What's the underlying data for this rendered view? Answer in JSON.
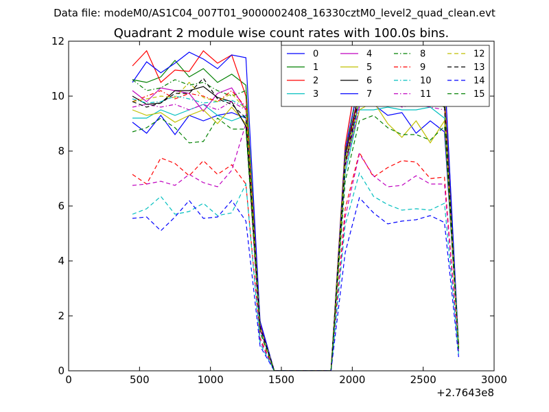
{
  "header": {
    "suptitle": "Data file: modeM0/AS1C04_007T01_9000002408_16330cztM0_level2_quad_clean.evt"
  },
  "chart_data": {
    "type": "line",
    "title": "Quadrant 2 module wise count rates with 100.0s bins.",
    "xlabel": "",
    "ylabel": "",
    "x_offset_label": "+2.7643e8",
    "xlim": [
      0,
      3000
    ],
    "ylim": [
      0,
      12
    ],
    "xticks": [
      0,
      500,
      1000,
      1500,
      2000,
      2500,
      3000
    ],
    "yticks": [
      0,
      2,
      4,
      6,
      8,
      10,
      12
    ],
    "grid": false,
    "legend": {
      "placement": "top-right",
      "columns": 4
    },
    "x": [
      450,
      550,
      650,
      750,
      850,
      950,
      1050,
      1150,
      1250,
      1350,
      1450,
      1550,
      1650,
      1750,
      1850,
      1950,
      2050,
      2150,
      2250,
      2350,
      2450,
      2550,
      2650,
      2750
    ],
    "series": [
      {
        "name": "0",
        "color": "#0000ff",
        "dash": "solid",
        "values": [
          9.05,
          8.65,
          9.3,
          8.6,
          9.3,
          9.1,
          9.3,
          9.4,
          9.2,
          1.7,
          0,
          0,
          0,
          0,
          0,
          7.5,
          9.8,
          9.7,
          9.3,
          9.4,
          8.65,
          9.1,
          8.7,
          0.9
        ]
      },
      {
        "name": "1",
        "color": "#008000",
        "dash": "solid",
        "values": [
          10.6,
          10.5,
          10.7,
          11.3,
          10.7,
          11.0,
          10.5,
          10.8,
          10.4,
          1.6,
          0,
          0,
          0,
          0,
          0,
          7.9,
          10.6,
          10.8,
          10.8,
          10.5,
          10.9,
          10.4,
          9.9,
          0.9
        ]
      },
      {
        "name": "2",
        "color": "#ff0000",
        "dash": "solid",
        "values": [
          11.1,
          11.65,
          10.5,
          10.95,
          10.9,
          11.65,
          11.2,
          11.5,
          10.0,
          1.7,
          0,
          0,
          0,
          0,
          0,
          8.2,
          11.3,
          11.0,
          10.4,
          10.5,
          10.6,
          10.1,
          10.2,
          0.9
        ]
      },
      {
        "name": "3",
        "color": "#00bfbf",
        "dash": "solid",
        "values": [
          9.2,
          9.2,
          9.5,
          9.3,
          9.5,
          9.7,
          9.3,
          9.1,
          9.3,
          1.5,
          0,
          0,
          0,
          0,
          0,
          7.2,
          9.5,
          9.5,
          9.6,
          9.5,
          9.5,
          9.6,
          9.2,
          0.9
        ]
      },
      {
        "name": "4",
        "color": "#bf00bf",
        "dash": "solid",
        "values": [
          10.2,
          9.8,
          10.3,
          10.2,
          10.1,
          9.45,
          10.1,
          10.3,
          9.5,
          1.7,
          0,
          0,
          0,
          0,
          0,
          7.9,
          10.2,
          10.3,
          10.1,
          10.15,
          10.15,
          9.8,
          9.9,
          0.9
        ]
      },
      {
        "name": "5",
        "color": "#bfbf00",
        "dash": "solid",
        "values": [
          9.5,
          9.3,
          9.4,
          9.05,
          9.3,
          9.5,
          9.0,
          9.6,
          9.0,
          1.6,
          0,
          0,
          0,
          0,
          0,
          7.5,
          9.5,
          9.8,
          9.0,
          8.5,
          9.1,
          8.3,
          9.1,
          0.8
        ]
      },
      {
        "name": "6",
        "color": "#000000",
        "dash": "solid",
        "values": [
          10.0,
          9.7,
          9.75,
          10.2,
          10.2,
          10.35,
          9.95,
          9.8,
          8.9,
          1.8,
          0,
          0,
          0,
          0,
          0,
          7.8,
          10.15,
          9.7,
          10.05,
          9.9,
          9.8,
          9.9,
          9.8,
          0.85
        ]
      },
      {
        "name": "7",
        "color": "#0000ff",
        "dash": "solid",
        "values": [
          10.5,
          11.25,
          10.85,
          11.2,
          11.6,
          11.35,
          11.0,
          11.5,
          11.4,
          1.8,
          0,
          0,
          0,
          0,
          0,
          8.0,
          10.6,
          11.25,
          11.15,
          11.2,
          11.05,
          10.85,
          11.0,
          0.9
        ]
      },
      {
        "name": "8",
        "color": "#008000",
        "dash": "dashdot",
        "values": [
          10.6,
          10.2,
          10.3,
          10.6,
          10.4,
          10.5,
          10.2,
          10.0,
          10.2,
          1.6,
          0,
          0,
          0,
          0,
          0,
          8.0,
          10.5,
          10.0,
          11.0,
          10.4,
          10.2,
          10.5,
          10.0,
          0.9
        ]
      },
      {
        "name": "9",
        "color": "#ff0000",
        "dash": "dashdot",
        "values": [
          9.8,
          10.0,
          10.2,
          9.9,
          10.1,
          10.0,
          9.8,
          10.2,
          9.6,
          1.6,
          0,
          0,
          0,
          0,
          0,
          7.6,
          10.1,
          10.2,
          10.0,
          10.0,
          10.3,
          9.9,
          9.7,
          0.85
        ]
      },
      {
        "name": "10",
        "color": "#00bfbf",
        "dash": "dashdot",
        "values": [
          9.9,
          9.75,
          9.8,
          10.0,
          9.9,
          9.75,
          9.8,
          9.85,
          9.6,
          1.5,
          0,
          0,
          0,
          0,
          0,
          7.5,
          9.8,
          10.3,
          10.5,
          10.1,
          10.0,
          10.2,
          9.8,
          0.85
        ]
      },
      {
        "name": "11",
        "color": "#bf00bf",
        "dash": "dashdot",
        "values": [
          9.6,
          9.7,
          9.6,
          9.7,
          9.5,
          9.7,
          9.5,
          9.8,
          9.5,
          1.5,
          0,
          0,
          0,
          0,
          0,
          7.4,
          9.6,
          9.8,
          9.9,
          9.6,
          9.7,
          9.6,
          9.5,
          0.8
        ]
      },
      {
        "name": "12",
        "color": "#bfbf00",
        "dash": "dashed",
        "values": [
          9.8,
          9.9,
          10.0,
          9.95,
          10.5,
          9.95,
          9.8,
          10.1,
          9.5,
          1.6,
          0,
          0,
          0,
          0,
          0,
          7.6,
          9.9,
          10.0,
          9.8,
          9.8,
          9.9,
          9.8,
          9.6,
          0.85
        ]
      },
      {
        "name": "13",
        "color": "#000000",
        "dash": "dashed",
        "values": [
          9.8,
          9.6,
          9.75,
          10.1,
          10.1,
          10.65,
          9.9,
          9.7,
          9.2,
          1.6,
          0,
          0,
          0,
          0,
          0,
          7.5,
          10.0,
          9.9,
          9.8,
          9.9,
          9.9,
          9.8,
          9.6,
          0.85
        ]
      },
      {
        "name": "14",
        "color": "#0000ff",
        "dash": "dashed",
        "values": [
          5.55,
          5.6,
          5.1,
          5.6,
          6.2,
          5.55,
          5.6,
          6.2,
          5.45,
          0.9,
          0,
          0,
          0,
          0,
          0,
          4.3,
          6.3,
          5.75,
          5.35,
          5.45,
          5.5,
          5.65,
          5.4,
          0.5
        ]
      },
      {
        "name": "15",
        "color": "#008000",
        "dash": "dashed",
        "values": [
          8.7,
          8.85,
          9.2,
          8.85,
          8.3,
          8.35,
          9.2,
          8.8,
          8.8,
          1.4,
          0,
          0,
          0,
          0,
          0,
          6.9,
          9.1,
          9.3,
          8.85,
          8.6,
          8.6,
          8.4,
          8.9,
          0.8
        ]
      }
    ],
    "extra_lines": [
      {
        "name": "",
        "color": "#8888ee",
        "dash": "solid",
        "values": [
          null,
          null,
          null,
          null,
          null,
          null,
          null,
          null,
          null,
          null,
          null,
          null,
          null,
          null,
          null,
          8.0,
          11.4,
          11.5,
          11.0,
          10.9,
          10.6,
          10.95,
          11.05,
          0.9
        ]
      },
      {
        "name": "",
        "color": "#ff0000",
        "dash": "dashed",
        "values": [
          7.15,
          6.8,
          7.75,
          7.55,
          7.1,
          7.65,
          7.15,
          7.5,
          6.8,
          1.2,
          0,
          0,
          0,
          0,
          0,
          5.9,
          7.95,
          7.05,
          7.4,
          7.65,
          7.6,
          7.0,
          7.05,
          0.7
        ]
      },
      {
        "name": "",
        "color": "#bf00bf",
        "dash": "dashed",
        "values": [
          6.75,
          6.8,
          6.9,
          6.75,
          7.15,
          6.85,
          6.7,
          7.3,
          9.0,
          1.1,
          0,
          0,
          0,
          0,
          0,
          5.6,
          7.9,
          7.1,
          6.7,
          6.75,
          7.1,
          6.8,
          6.8,
          0.7
        ]
      },
      {
        "name": "",
        "color": "#00bfbf",
        "dash": "dashed",
        "values": [
          5.7,
          5.9,
          6.35,
          5.7,
          5.8,
          6.1,
          5.65,
          5.75,
          6.8,
          1.0,
          0,
          0,
          0,
          0,
          0,
          5.3,
          7.2,
          6.35,
          6.05,
          5.85,
          5.9,
          5.85,
          6.1,
          0.6
        ]
      }
    ]
  }
}
